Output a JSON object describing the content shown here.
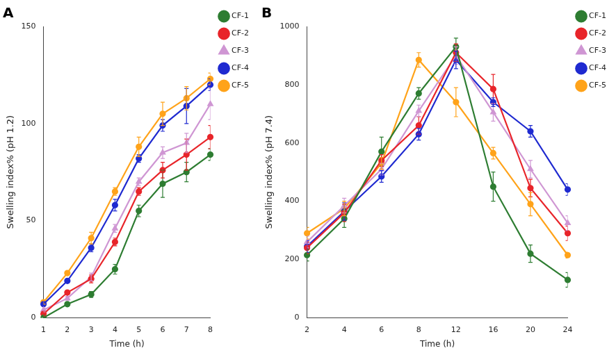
{
  "chart_data": [
    {
      "type": "line",
      "title": "A",
      "x_label": "Time (h)",
      "y_label": "Swelling index% (pH 1.2)",
      "categories": [
        "1",
        "2",
        "3",
        "4",
        "5",
        "6",
        "7",
        "8"
      ],
      "ylim": [
        0,
        150
      ],
      "yticks": [
        0,
        50,
        100,
        150
      ],
      "grid": false,
      "legend": "right",
      "series": [
        {
          "name": "CF-1",
          "color": "#2e7d32",
          "marker": "circle",
          "values": [
            0,
            7,
            12,
            25,
            55,
            69,
            75,
            84
          ],
          "errors": [
            1,
            1,
            1.5,
            2.5,
            3,
            7,
            5,
            3
          ]
        },
        {
          "name": "CF-2",
          "color": "#e8252a",
          "marker": "circle",
          "values": [
            2,
            13,
            20,
            39,
            65,
            76,
            84,
            93
          ],
          "errors": [
            1,
            1,
            2,
            2,
            2,
            4,
            8,
            6
          ]
        },
        {
          "name": "CF-3",
          "color": "#cf96d3",
          "marker": "triangle",
          "values": [
            4,
            10,
            21,
            46,
            70,
            85,
            90,
            110
          ],
          "errors": [
            1,
            1,
            2,
            2,
            2,
            3,
            5,
            8
          ]
        },
        {
          "name": "CF-4",
          "color": "#1f2ad0",
          "marker": "circle",
          "values": [
            7,
            19,
            36,
            58,
            82,
            99,
            109,
            120
          ],
          "errors": [
            1,
            1,
            2,
            3,
            2,
            3,
            9,
            3
          ]
        },
        {
          "name": "CF-5",
          "color": "#ffa31a",
          "marker": "circle",
          "values": [
            8,
            23,
            41,
            65,
            88,
            105,
            113,
            123
          ],
          "errors": [
            1,
            1,
            3,
            2,
            5,
            6,
            6,
            3
          ]
        }
      ]
    },
    {
      "type": "line",
      "title": "B",
      "x_label": "Time (h)",
      "y_label": "Swelling index% (pH 7.4)",
      "categories": [
        "2",
        "4",
        "6",
        "8",
        "12",
        "16",
        "20",
        "24"
      ],
      "ylim": [
        0,
        1000
      ],
      "yticks": [
        0,
        200,
        400,
        600,
        800,
        1000
      ],
      "grid": false,
      "legend": "right",
      "series": [
        {
          "name": "CF-1",
          "color": "#2e7d32",
          "marker": "circle",
          "values": [
            215,
            340,
            570,
            770,
            930,
            450,
            220,
            130
          ],
          "errors": [
            20,
            30,
            50,
            20,
            30,
            50,
            30,
            25
          ]
        },
        {
          "name": "CF-2",
          "color": "#e8252a",
          "marker": "circle",
          "values": [
            240,
            360,
            540,
            660,
            910,
            785,
            445,
            290
          ],
          "errors": [
            20,
            30,
            20,
            30,
            30,
            50,
            30,
            25
          ]
        },
        {
          "name": "CF-3",
          "color": "#cf96d3",
          "marker": "triangle",
          "values": [
            260,
            385,
            510,
            710,
            900,
            705,
            510,
            325
          ],
          "errors": [
            20,
            25,
            20,
            20,
            30,
            30,
            30,
            25
          ]
        },
        {
          "name": "CF-4",
          "color": "#1f2ad0",
          "marker": "circle",
          "values": [
            245,
            365,
            485,
            630,
            885,
            740,
            640,
            440
          ],
          "errors": [
            20,
            30,
            20,
            20,
            30,
            15,
            20,
            20
          ]
        },
        {
          "name": "CF-5",
          "color": "#ffa31a",
          "marker": "circle",
          "values": [
            290,
            375,
            530,
            885,
            740,
            565,
            390,
            215
          ],
          "errors": [
            20,
            25,
            20,
            25,
            50,
            20,
            40,
            10
          ]
        }
      ]
    }
  ]
}
